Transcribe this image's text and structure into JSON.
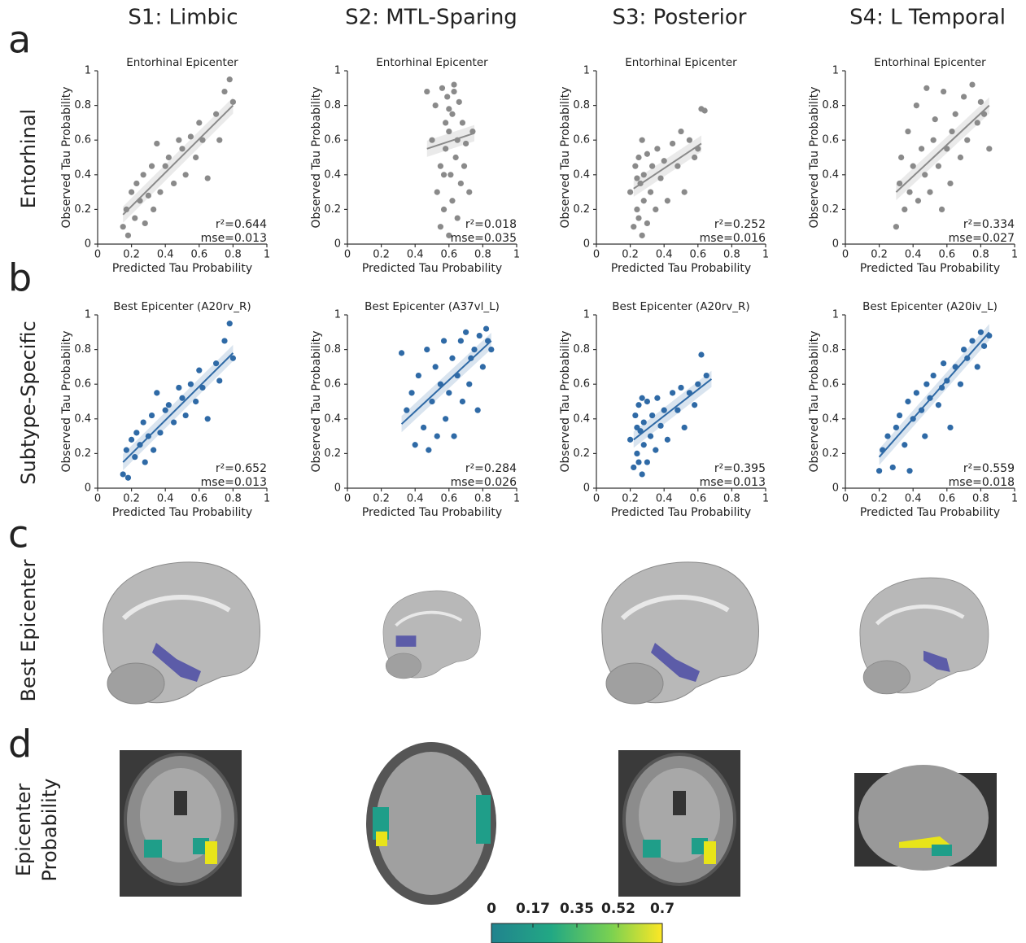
{
  "column_titles": [
    "S1: Limbic",
    "S2: MTL-Sparing",
    "S3: Posterior",
    "S4: L Temporal"
  ],
  "panel_labels": [
    "a",
    "b",
    "c",
    "d"
  ],
  "row_labels": [
    "Entorhinal",
    "Subtype-Specific",
    "Best Epicenter",
    [
      "Epicenter",
      "Probability"
    ]
  ],
  "chart_data": [
    {
      "type": "scatter",
      "title": "Entorhinal Epicenter",
      "xlabel": "Predicted Tau Probability",
      "ylabel": "Observed Tau Probability",
      "color": "#8a8a8a",
      "x": [
        0.15,
        0.17,
        0.18,
        0.2,
        0.22,
        0.23,
        0.25,
        0.27,
        0.28,
        0.3,
        0.32,
        0.33,
        0.35,
        0.37,
        0.4,
        0.42,
        0.45,
        0.48,
        0.5,
        0.52,
        0.55,
        0.58,
        0.6,
        0.62,
        0.65,
        0.7,
        0.72,
        0.75,
        0.78,
        0.8
      ],
      "values": [
        0.1,
        0.2,
        0.05,
        0.3,
        0.15,
        0.35,
        0.25,
        0.4,
        0.12,
        0.28,
        0.45,
        0.2,
        0.58,
        0.3,
        0.45,
        0.5,
        0.35,
        0.6,
        0.55,
        0.4,
        0.62,
        0.5,
        0.7,
        0.6,
        0.38,
        0.75,
        0.6,
        0.88,
        0.95,
        0.82
      ],
      "fit": {
        "x": [
          0.15,
          0.8
        ],
        "values": [
          0.17,
          0.8
        ]
      },
      "annotations": [
        "r²=0.644",
        "mse=0.013"
      ],
      "xlim": [
        0,
        1
      ],
      "ylim": [
        0,
        1
      ],
      "xticks": [
        0,
        0.2,
        0.4,
        0.6,
        0.8,
        1
      ],
      "yticks": [
        0,
        0.2,
        0.4,
        0.6,
        0.8,
        1
      ]
    },
    {
      "type": "scatter",
      "title": "Entorhinal Epicenter",
      "xlabel": "Predicted Tau Probability",
      "ylabel": "Observed Tau Probability",
      "color": "#8a8a8a",
      "x": [
        0.47,
        0.5,
        0.52,
        0.53,
        0.55,
        0.56,
        0.57,
        0.58,
        0.58,
        0.59,
        0.6,
        0.6,
        0.61,
        0.62,
        0.62,
        0.63,
        0.64,
        0.65,
        0.65,
        0.66,
        0.67,
        0.68,
        0.69,
        0.7,
        0.72,
        0.74,
        0.55,
        0.6,
        0.63,
        0.57
      ],
      "values": [
        0.88,
        0.6,
        0.8,
        0.3,
        0.45,
        0.9,
        0.2,
        0.7,
        0.55,
        0.85,
        0.05,
        0.65,
        0.4,
        0.75,
        0.25,
        0.92,
        0.5,
        0.6,
        0.15,
        0.82,
        0.35,
        0.7,
        0.45,
        0.58,
        0.3,
        0.65,
        0.1,
        0.78,
        0.88,
        0.4
      ],
      "fit": {
        "x": [
          0.47,
          0.75
        ],
        "values": [
          0.55,
          0.64
        ]
      },
      "annotations": [
        "r²=0.018",
        "mse=0.035"
      ],
      "xlim": [
        0,
        1
      ],
      "ylim": [
        0,
        1
      ],
      "xticks": [
        0,
        0.2,
        0.4,
        0.6,
        0.8,
        1
      ],
      "yticks": [
        0,
        0.2,
        0.4,
        0.6,
        0.8,
        1
      ]
    },
    {
      "type": "scatter",
      "title": "Entorhinal Epicenter",
      "xlabel": "Predicted Tau Probability",
      "ylabel": "Observed Tau Probability",
      "color": "#8a8a8a",
      "x": [
        0.2,
        0.22,
        0.23,
        0.24,
        0.25,
        0.25,
        0.26,
        0.27,
        0.28,
        0.28,
        0.3,
        0.3,
        0.32,
        0.33,
        0.35,
        0.36,
        0.38,
        0.4,
        0.42,
        0.45,
        0.48,
        0.5,
        0.52,
        0.55,
        0.58,
        0.6,
        0.62,
        0.64,
        0.27,
        0.24
      ],
      "values": [
        0.3,
        0.1,
        0.45,
        0.2,
        0.5,
        0.15,
        0.35,
        0.05,
        0.4,
        0.25,
        0.52,
        0.12,
        0.3,
        0.45,
        0.2,
        0.55,
        0.38,
        0.48,
        0.25,
        0.58,
        0.45,
        0.65,
        0.3,
        0.6,
        0.5,
        0.55,
        0.78,
        0.77,
        0.6,
        0.38
      ],
      "fit": {
        "x": [
          0.22,
          0.62
        ],
        "values": [
          0.32,
          0.58
        ]
      },
      "annotations": [
        "r²=0.252",
        "mse=0.016"
      ],
      "xlim": [
        0,
        1
      ],
      "ylim": [
        0,
        1
      ],
      "xticks": [
        0,
        0.2,
        0.4,
        0.6,
        0.8,
        1
      ],
      "yticks": [
        0,
        0.2,
        0.4,
        0.6,
        0.8,
        1
      ]
    },
    {
      "type": "scatter",
      "title": "Entorhinal Epicenter",
      "xlabel": "Predicted Tau Probability",
      "ylabel": "Observed Tau Probability",
      "color": "#8a8a8a",
      "x": [
        0.3,
        0.32,
        0.33,
        0.35,
        0.37,
        0.38,
        0.4,
        0.42,
        0.43,
        0.45,
        0.47,
        0.48,
        0.5,
        0.52,
        0.53,
        0.55,
        0.57,
        0.58,
        0.6,
        0.62,
        0.63,
        0.65,
        0.68,
        0.7,
        0.72,
        0.75,
        0.78,
        0.8,
        0.82,
        0.85
      ],
      "values": [
        0.1,
        0.35,
        0.5,
        0.2,
        0.65,
        0.3,
        0.45,
        0.8,
        0.25,
        0.55,
        0.4,
        0.9,
        0.3,
        0.6,
        0.72,
        0.45,
        0.2,
        0.88,
        0.55,
        0.35,
        0.65,
        0.75,
        0.5,
        0.85,
        0.6,
        0.92,
        0.7,
        0.82,
        0.75,
        0.55
      ],
      "fit": {
        "x": [
          0.3,
          0.85
        ],
        "values": [
          0.3,
          0.8
        ]
      },
      "annotations": [
        "r²=0.334",
        "mse=0.027"
      ],
      "xlim": [
        0,
        1
      ],
      "ylim": [
        0,
        1
      ],
      "xticks": [
        0,
        0.2,
        0.4,
        0.6,
        0.8,
        1
      ],
      "yticks": [
        0,
        0.2,
        0.4,
        0.6,
        0.8,
        1
      ]
    },
    {
      "type": "scatter",
      "title": "Best Epicenter (A20rv_R)",
      "xlabel": "Predicted Tau Probability",
      "ylabel": "Observed Tau Probability",
      "color": "#2f6aa6",
      "x": [
        0.15,
        0.17,
        0.18,
        0.2,
        0.22,
        0.23,
        0.25,
        0.27,
        0.28,
        0.3,
        0.32,
        0.33,
        0.35,
        0.37,
        0.4,
        0.42,
        0.45,
        0.48,
        0.5,
        0.52,
        0.55,
        0.58,
        0.6,
        0.62,
        0.65,
        0.7,
        0.72,
        0.75,
        0.78,
        0.8
      ],
      "values": [
        0.08,
        0.22,
        0.06,
        0.28,
        0.18,
        0.32,
        0.25,
        0.38,
        0.15,
        0.3,
        0.42,
        0.22,
        0.55,
        0.32,
        0.45,
        0.48,
        0.38,
        0.58,
        0.52,
        0.42,
        0.6,
        0.5,
        0.68,
        0.58,
        0.4,
        0.72,
        0.62,
        0.85,
        0.95,
        0.75
      ],
      "fit": {
        "x": [
          0.15,
          0.8
        ],
        "values": [
          0.15,
          0.78
        ]
      },
      "annotations": [
        "r²=0.652",
        "mse=0.013"
      ],
      "xlim": [
        0,
        1
      ],
      "ylim": [
        0,
        1
      ],
      "xticks": [
        0,
        0.2,
        0.4,
        0.6,
        0.8,
        1
      ],
      "yticks": [
        0,
        0.2,
        0.4,
        0.6,
        0.8,
        1
      ]
    },
    {
      "type": "scatter",
      "title": "Best Epicenter (A37vl_L)",
      "xlabel": "Predicted Tau Probability",
      "ylabel": "Observed Tau Probability",
      "color": "#2f6aa6",
      "x": [
        0.32,
        0.35,
        0.38,
        0.4,
        0.42,
        0.45,
        0.47,
        0.48,
        0.5,
        0.52,
        0.53,
        0.55,
        0.57,
        0.58,
        0.6,
        0.62,
        0.63,
        0.65,
        0.67,
        0.68,
        0.7,
        0.72,
        0.73,
        0.75,
        0.77,
        0.78,
        0.8,
        0.82,
        0.83,
        0.85
      ],
      "values": [
        0.78,
        0.45,
        0.55,
        0.25,
        0.65,
        0.35,
        0.8,
        0.22,
        0.5,
        0.7,
        0.3,
        0.6,
        0.85,
        0.4,
        0.55,
        0.75,
        0.3,
        0.65,
        0.85,
        0.5,
        0.9,
        0.6,
        0.75,
        0.8,
        0.45,
        0.88,
        0.7,
        0.92,
        0.85,
        0.8
      ],
      "fit": {
        "x": [
          0.32,
          0.85
        ],
        "values": [
          0.37,
          0.85
        ]
      },
      "annotations": [
        "r²=0.284",
        "mse=0.026"
      ],
      "xlim": [
        0,
        1
      ],
      "ylim": [
        0,
        1
      ],
      "xticks": [
        0,
        0.2,
        0.4,
        0.6,
        0.8,
        1
      ],
      "yticks": [
        0,
        0.2,
        0.4,
        0.6,
        0.8,
        1
      ]
    },
    {
      "type": "scatter",
      "title": "Best Epicenter (A20rv_R)",
      "xlabel": "Predicted Tau Probability",
      "ylabel": "Observed Tau Probability",
      "color": "#2f6aa6",
      "x": [
        0.2,
        0.22,
        0.23,
        0.24,
        0.25,
        0.25,
        0.26,
        0.27,
        0.28,
        0.28,
        0.3,
        0.3,
        0.32,
        0.33,
        0.35,
        0.36,
        0.38,
        0.4,
        0.42,
        0.45,
        0.48,
        0.5,
        0.52,
        0.55,
        0.58,
        0.6,
        0.62,
        0.65,
        0.27,
        0.24
      ],
      "values": [
        0.28,
        0.12,
        0.42,
        0.2,
        0.48,
        0.15,
        0.33,
        0.08,
        0.38,
        0.25,
        0.5,
        0.15,
        0.3,
        0.42,
        0.22,
        0.52,
        0.36,
        0.45,
        0.28,
        0.55,
        0.45,
        0.58,
        0.35,
        0.55,
        0.48,
        0.6,
        0.77,
        0.65,
        0.52,
        0.35
      ],
      "fit": {
        "x": [
          0.22,
          0.68
        ],
        "values": [
          0.28,
          0.63
        ]
      },
      "annotations": [
        "r²=0.395",
        "mse=0.013"
      ],
      "xlim": [
        0,
        1
      ],
      "ylim": [
        0,
        1
      ],
      "xticks": [
        0,
        0.2,
        0.4,
        0.6,
        0.8,
        1
      ],
      "yticks": [
        0,
        0.2,
        0.4,
        0.6,
        0.8,
        1
      ]
    },
    {
      "type": "scatter",
      "title": "Best Epicenter (A20iv_L)",
      "xlabel": "Predicted Tau Probability",
      "ylabel": "Observed Tau Probability",
      "color": "#2f6aa6",
      "x": [
        0.2,
        0.22,
        0.25,
        0.28,
        0.3,
        0.32,
        0.35,
        0.37,
        0.38,
        0.4,
        0.42,
        0.45,
        0.47,
        0.48,
        0.5,
        0.52,
        0.55,
        0.57,
        0.58,
        0.6,
        0.62,
        0.65,
        0.68,
        0.7,
        0.72,
        0.75,
        0.78,
        0.8,
        0.82,
        0.85
      ],
      "values": [
        0.1,
        0.22,
        0.3,
        0.12,
        0.35,
        0.42,
        0.25,
        0.5,
        0.1,
        0.4,
        0.55,
        0.45,
        0.3,
        0.6,
        0.52,
        0.65,
        0.48,
        0.58,
        0.72,
        0.62,
        0.35,
        0.7,
        0.6,
        0.8,
        0.75,
        0.85,
        0.7,
        0.9,
        0.82,
        0.88
      ],
      "fit": {
        "x": [
          0.2,
          0.85
        ],
        "values": [
          0.18,
          0.9
        ]
      },
      "annotations": [
        "r²=0.559",
        "mse=0.018"
      ],
      "xlim": [
        0,
        1
      ],
      "ylim": [
        0,
        1
      ],
      "xticks": [
        0,
        0.2,
        0.4,
        0.6,
        0.8,
        1
      ],
      "yticks": [
        0,
        0.2,
        0.4,
        0.6,
        0.8,
        1
      ]
    }
  ],
  "colorbar": {
    "lim": [
      0,
      0.7
    ],
    "ticks": [
      0,
      0.17,
      0.35,
      0.52,
      0.7
    ]
  }
}
